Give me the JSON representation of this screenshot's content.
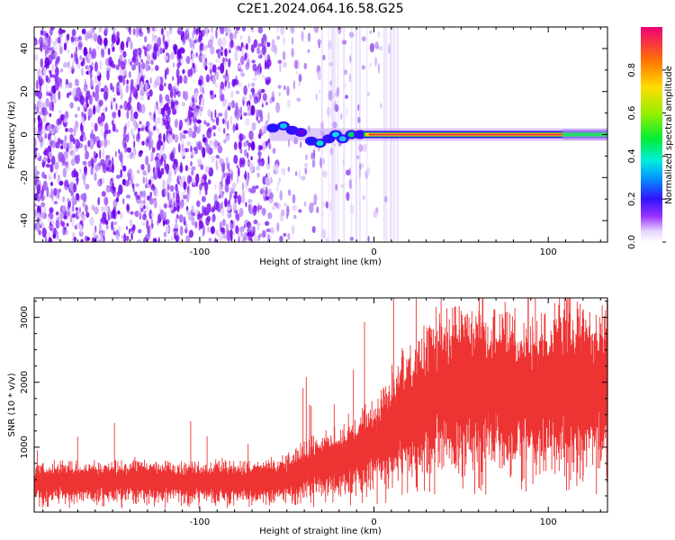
{
  "title": "C2E1.2024.064.16.58.G25",
  "chart_data": [
    {
      "type": "heatmap",
      "xlabel": "Height of straight line (km)",
      "ylabel": "Frequency (Hz)",
      "xlim": [
        -195,
        134
      ],
      "ylim": [
        -50,
        50
      ],
      "xticks": [
        -100,
        0,
        100
      ],
      "xtick_labels": [
        "-100",
        "0",
        "100"
      ],
      "yticks": [
        -40,
        -20,
        0,
        20,
        40
      ],
      "ytick_labels": [
        "-40",
        "-20",
        "0",
        "20",
        "40"
      ],
      "grid": false,
      "colorbar": {
        "label": "Normalized spectral amplitude",
        "range": [
          0,
          1
        ],
        "ticks": [
          0.0,
          0.2,
          0.4,
          0.6,
          0.8
        ],
        "tick_labels": [
          "0.0",
          "0.2",
          "0.4",
          "0.6",
          "0.8"
        ]
      },
      "features": {
        "noise_region_x": [
          -195,
          -60
        ],
        "signal_line_frequency": 0,
        "signal_start_x": -60,
        "strong_signal_x": [
          -5,
          110
        ]
      }
    },
    {
      "type": "line",
      "xlabel": "Height of straight line (km)",
      "ylabel": "SNR (10 * v/v)",
      "xlim": [
        -195,
        134
      ],
      "ylim": [
        0,
        3300
      ],
      "xticks": [
        -100,
        0,
        100
      ],
      "xtick_labels": [
        "-100",
        "0",
        "100"
      ],
      "yticks": [
        1000,
        2000,
        3000
      ],
      "ytick_labels": [
        "1000",
        "2000",
        "3000"
      ],
      "grid": false,
      "series": [
        {
          "color": "#ee3333",
          "x": [
            -195,
            -170,
            -150,
            -130,
            -110,
            -90,
            -70,
            -50,
            -40,
            -30,
            -20,
            -10,
            0,
            10,
            20,
            30,
            40,
            50,
            60,
            70,
            80,
            90,
            100,
            110,
            120,
            134
          ],
          "y": [
            450,
            480,
            470,
            500,
            460,
            480,
            470,
            520,
            650,
            700,
            800,
            900,
            1050,
            1300,
            1500,
            1750,
            1900,
            1950,
            1950,
            1900,
            1850,
            1800,
            1850,
            1950,
            1950,
            1900
          ]
        }
      ]
    }
  ]
}
